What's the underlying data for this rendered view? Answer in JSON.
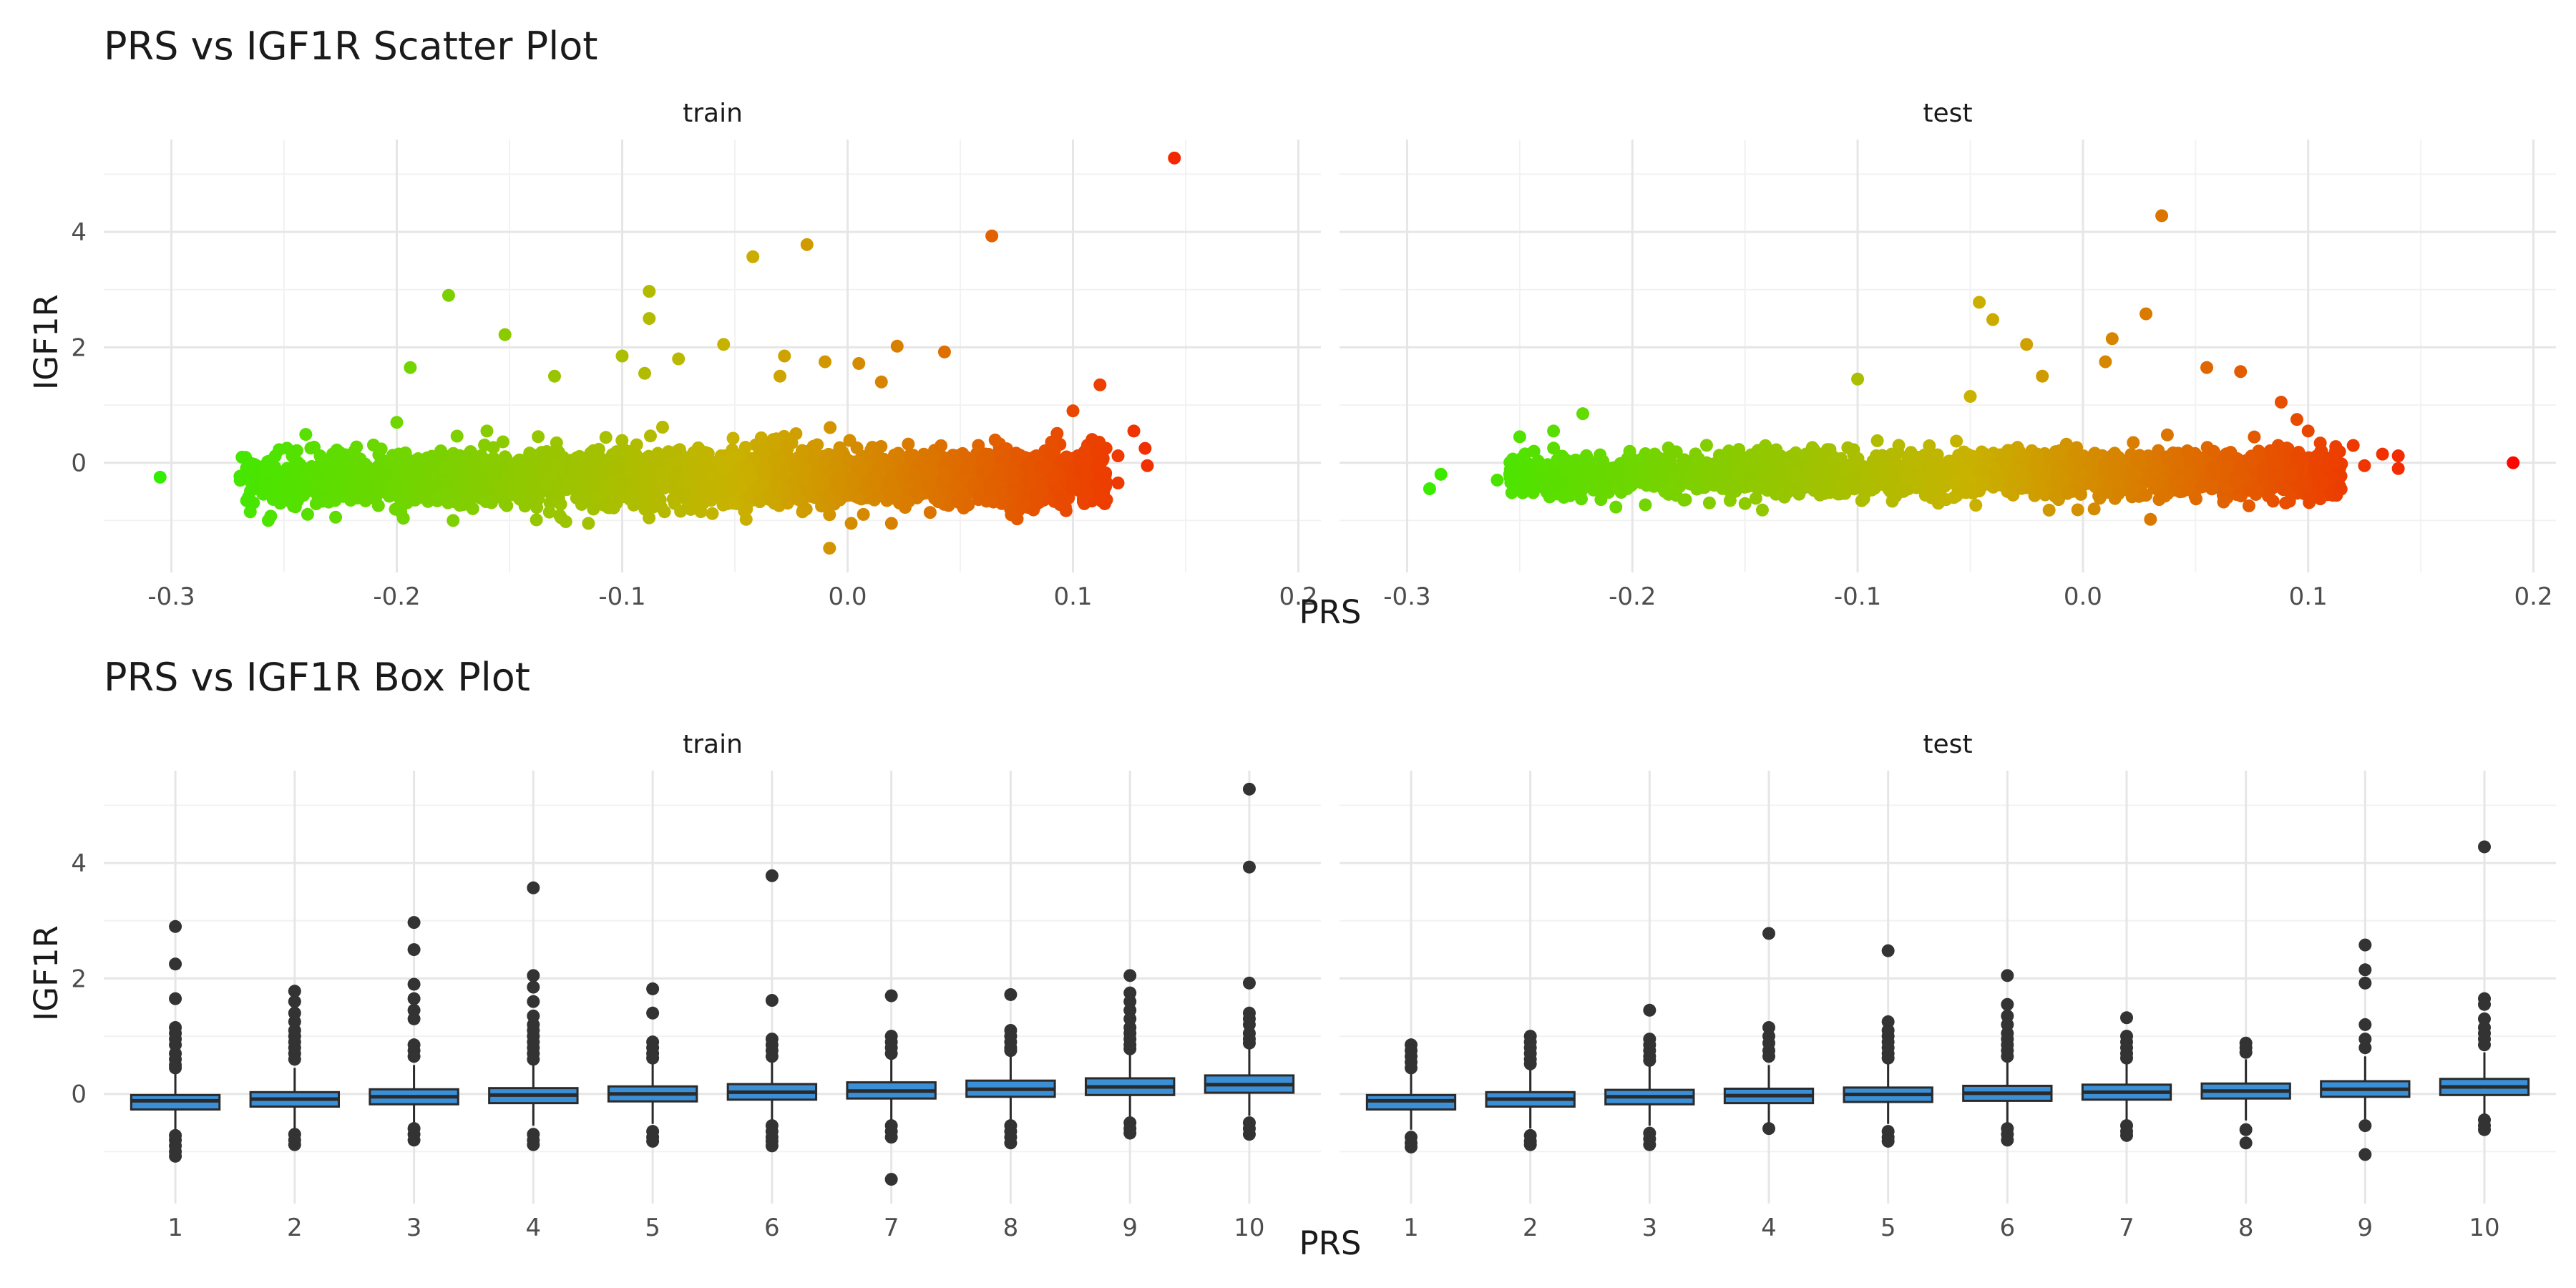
{
  "colors": {
    "grid_major": "#e6e6e6",
    "grid_minor": "#f2f2f2",
    "tick_text": "#4d4d4d",
    "text": "#1a1a1a",
    "box_fill": "#3a8fd6",
    "box_stroke": "#2a2a2a",
    "outlier": "#333333",
    "scatter_low": "#33ee00",
    "scatter_mid": "#c9b200",
    "scatter_high": "#ff0000"
  },
  "chart_data": [
    {
      "type": "scatter",
      "title": "PRS vs IGF1R Scatter Plot",
      "xlabel": "PRS",
      "ylabel": "IGF1R",
      "xlim": [
        -0.33,
        0.21
      ],
      "ylim": [
        -1.9,
        5.6
      ],
      "x_ticks": [
        -0.3,
        -0.2,
        -0.1,
        0.0,
        0.1,
        0.2
      ],
      "x_tick_labels": [
        "-0.3",
        "-0.2",
        "-0.1",
        "0.0",
        "0.1",
        "0.2"
      ],
      "y_ticks": [
        0,
        2,
        4
      ],
      "y_tick_labels": [
        "0",
        "2",
        "4"
      ],
      "grid": true,
      "color_by": "PRS",
      "panels": [
        {
          "label": "train",
          "cloud": {
            "x_min": -0.27,
            "x_max": 0.115,
            "baseline": -0.3,
            "slope": 2.3,
            "spread": 0.6
          },
          "points": [
            [
              -0.305,
              -0.25
            ],
            [
              0.145,
              5.28
            ],
            [
              0.064,
              3.93
            ],
            [
              -0.018,
              3.78
            ],
            [
              -0.042,
              3.57
            ],
            [
              -0.088,
              2.97
            ],
            [
              -0.088,
              2.5
            ],
            [
              -0.177,
              2.9
            ],
            [
              -0.152,
              2.22
            ],
            [
              -0.194,
              1.65
            ],
            [
              -0.13,
              1.5
            ],
            [
              -0.1,
              1.85
            ],
            [
              -0.075,
              1.8
            ],
            [
              -0.055,
              2.05
            ],
            [
              -0.028,
              1.85
            ],
            [
              -0.01,
              1.75
            ],
            [
              0.022,
              2.02
            ],
            [
              0.043,
              1.92
            ],
            [
              0.005,
              1.72
            ],
            [
              0.112,
              1.35
            ],
            [
              0.127,
              0.55
            ],
            [
              0.132,
              0.25
            ],
            [
              0.133,
              -0.05
            ],
            [
              0.12,
              -0.35
            ],
            [
              0.12,
              0.12
            ],
            [
              -0.257,
              -1.0
            ],
            [
              -0.265,
              -0.85
            ],
            [
              -0.175,
              -1.0
            ],
            [
              -0.125,
              -1.02
            ],
            [
              -0.06,
              -0.88
            ],
            [
              -0.045,
              -0.98
            ],
            [
              -0.02,
              -0.85
            ],
            [
              -0.008,
              -0.9
            ],
            [
              -0.008,
              -1.48
            ],
            [
              -0.09,
              1.55
            ],
            [
              -0.03,
              1.5
            ],
            [
              0.015,
              1.4
            ],
            [
              -0.16,
              0.55
            ],
            [
              -0.2,
              0.7
            ],
            [
              0.1,
              0.9
            ]
          ]
        },
        {
          "label": "test",
          "cloud": {
            "x_min": -0.255,
            "x_max": 0.115,
            "baseline": -0.22,
            "slope": 1.6,
            "spread": 0.48
          },
          "points": [
            [
              -0.285,
              -0.2
            ],
            [
              -0.29,
              -0.45
            ],
            [
              0.191,
              0.0
            ],
            [
              0.035,
              4.28
            ],
            [
              -0.046,
              2.78
            ],
            [
              -0.04,
              2.48
            ],
            [
              0.028,
              2.58
            ],
            [
              -0.025,
              2.05
            ],
            [
              0.01,
              1.75
            ],
            [
              0.013,
              2.15
            ],
            [
              0.055,
              1.65
            ],
            [
              0.07,
              1.58
            ],
            [
              -0.1,
              1.45
            ],
            [
              -0.018,
              1.5
            ],
            [
              0.088,
              1.05
            ],
            [
              -0.05,
              1.15
            ],
            [
              -0.222,
              0.85
            ],
            [
              0.12,
              0.3
            ],
            [
              0.133,
              0.15
            ],
            [
              0.14,
              0.12
            ],
            [
              0.14,
              -0.1
            ],
            [
              0.125,
              -0.05
            ],
            [
              0.03,
              -0.98
            ],
            [
              0.005,
              -0.8
            ],
            [
              -0.015,
              -0.82
            ],
            [
              -0.25,
              0.45
            ],
            [
              -0.235,
              0.55
            ],
            [
              -0.26,
              -0.3
            ],
            [
              0.1,
              0.55
            ],
            [
              0.095,
              0.75
            ]
          ]
        }
      ]
    },
    {
      "type": "box",
      "title": "PRS vs IGF1R Box Plot",
      "xlabel": "PRS",
      "ylabel": "IGF1R",
      "categories": [
        "1",
        "2",
        "3",
        "4",
        "5",
        "6",
        "7",
        "8",
        "9",
        "10"
      ],
      "ylim": [
        -1.9,
        5.6
      ],
      "y_ticks": [
        0,
        2,
        4
      ],
      "y_tick_labels": [
        "0",
        "2",
        "4"
      ],
      "grid": true,
      "panels": [
        {
          "label": "train",
          "boxes": [
            {
              "q1": -0.27,
              "median": -0.12,
              "q3": -0.02,
              "whisker_low": -0.65,
              "whisker_high": 0.38,
              "outliers": [
                2.9,
                2.25,
                1.65,
                1.15,
                1.05,
                0.95,
                0.85,
                0.7,
                0.6,
                0.5,
                0.45,
                -0.72,
                -0.8,
                -0.9,
                -1.0,
                -1.08
              ]
            },
            {
              "q1": -0.22,
              "median": -0.09,
              "q3": 0.03,
              "whisker_low": -0.6,
              "whisker_high": 0.45,
              "outliers": [
                1.78,
                1.6,
                1.4,
                1.25,
                1.1,
                1.0,
                0.9,
                0.8,
                0.7,
                0.6,
                -0.7,
                -0.8,
                -0.88
              ]
            },
            {
              "q1": -0.18,
              "median": -0.05,
              "q3": 0.08,
              "whisker_low": -0.55,
              "whisker_high": 0.5,
              "outliers": [
                2.97,
                2.5,
                1.9,
                1.65,
                1.45,
                1.3,
                0.85,
                0.75,
                0.65,
                -0.6,
                -0.7,
                -0.8
              ]
            },
            {
              "q1": -0.16,
              "median": -0.02,
              "q3": 0.1,
              "whisker_low": -0.55,
              "whisker_high": 0.52,
              "outliers": [
                3.57,
                2.05,
                1.85,
                1.6,
                1.35,
                1.2,
                1.1,
                1.0,
                0.9,
                0.8,
                0.7,
                0.6,
                -0.7,
                -0.8,
                -0.88
              ]
            },
            {
              "q1": -0.13,
              "median": 0.0,
              "q3": 0.13,
              "whisker_low": -0.52,
              "whisker_high": 0.52,
              "outliers": [
                1.82,
                1.4,
                0.9,
                0.8,
                0.7,
                0.62,
                -0.65,
                -0.75,
                -0.82
              ]
            },
            {
              "q1": -0.1,
              "median": 0.03,
              "q3": 0.17,
              "whisker_low": -0.5,
              "whisker_high": 0.55,
              "outliers": [
                3.78,
                1.62,
                0.95,
                0.85,
                0.75,
                0.65,
                -0.55,
                -0.65,
                -0.75,
                -0.82,
                -0.9
              ]
            },
            {
              "q1": -0.08,
              "median": 0.05,
              "q3": 0.2,
              "whisker_low": -0.48,
              "whisker_high": 0.6,
              "outliers": [
                1.7,
                1.0,
                0.9,
                0.8,
                0.7,
                -0.55,
                -0.65,
                -0.75,
                -1.48
              ]
            },
            {
              "q1": -0.05,
              "median": 0.08,
              "q3": 0.23,
              "whisker_low": -0.45,
              "whisker_high": 0.65,
              "outliers": [
                1.72,
                1.1,
                1.0,
                0.9,
                0.8,
                0.75,
                -0.55,
                -0.65,
                -0.75,
                -0.85
              ]
            },
            {
              "q1": -0.02,
              "median": 0.12,
              "q3": 0.27,
              "whisker_low": -0.42,
              "whisker_high": 0.7,
              "outliers": [
                2.05,
                1.75,
                1.6,
                1.45,
                1.3,
                1.15,
                1.05,
                0.95,
                0.85,
                0.78,
                -0.5,
                -0.6,
                -0.68
              ]
            },
            {
              "q1": 0.02,
              "median": 0.16,
              "q3": 0.32,
              "whisker_low": -0.38,
              "whisker_high": 0.78,
              "outliers": [
                5.28,
                3.93,
                1.92,
                1.4,
                1.3,
                1.2,
                1.05,
                0.95,
                0.88,
                -0.5,
                -0.6,
                -0.7
              ]
            }
          ]
        },
        {
          "label": "test",
          "boxes": [
            {
              "q1": -0.27,
              "median": -0.12,
              "q3": -0.02,
              "whisker_low": -0.62,
              "whisker_high": 0.38,
              "outliers": [
                0.85,
                0.75,
                0.65,
                0.55,
                0.45,
                -0.75,
                -0.85,
                -0.92
              ]
            },
            {
              "q1": -0.22,
              "median": -0.09,
              "q3": 0.03,
              "whisker_low": -0.6,
              "whisker_high": 0.45,
              "outliers": [
                1.0,
                0.9,
                0.8,
                0.7,
                0.6,
                0.52,
                -0.72,
                -0.82,
                -0.88
              ]
            },
            {
              "q1": -0.18,
              "median": -0.05,
              "q3": 0.07,
              "whisker_low": -0.55,
              "whisker_high": 0.48,
              "outliers": [
                1.45,
                0.95,
                0.85,
                0.75,
                0.65,
                0.58,
                -0.68,
                -0.78,
                -0.88
              ]
            },
            {
              "q1": -0.16,
              "median": -0.03,
              "q3": 0.09,
              "whisker_low": -0.55,
              "whisker_high": 0.5,
              "outliers": [
                2.78,
                1.15,
                1.0,
                0.88,
                0.75,
                0.65,
                -0.6
              ]
            },
            {
              "q1": -0.14,
              "median": -0.01,
              "q3": 0.11,
              "whisker_low": -0.52,
              "whisker_high": 0.52,
              "outliers": [
                2.48,
                1.25,
                1.1,
                1.0,
                0.9,
                0.8,
                0.7,
                0.62,
                -0.65,
                -0.75,
                -0.82
              ]
            },
            {
              "q1": -0.12,
              "median": 0.01,
              "q3": 0.14,
              "whisker_low": -0.5,
              "whisker_high": 0.55,
              "outliers": [
                2.05,
                1.55,
                1.35,
                1.2,
                1.05,
                0.95,
                0.85,
                0.75,
                0.65,
                -0.6,
                -0.7,
                -0.8
              ]
            },
            {
              "q1": -0.1,
              "median": 0.03,
              "q3": 0.16,
              "whisker_low": -0.48,
              "whisker_high": 0.57,
              "outliers": [
                1.32,
                1.0,
                0.9,
                0.8,
                0.7,
                0.62,
                -0.55,
                -0.65,
                -0.72
              ]
            },
            {
              "q1": -0.08,
              "median": 0.05,
              "q3": 0.18,
              "whisker_low": -0.46,
              "whisker_high": 0.6,
              "outliers": [
                0.88,
                0.8,
                0.72,
                -0.62,
                -0.85
              ]
            },
            {
              "q1": -0.05,
              "median": 0.08,
              "q3": 0.22,
              "whisker_low": -0.44,
              "whisker_high": 0.65,
              "outliers": [
                2.58,
                2.15,
                1.92,
                1.2,
                0.95,
                0.8,
                -0.55,
                -1.05
              ]
            },
            {
              "q1": -0.02,
              "median": 0.12,
              "q3": 0.26,
              "whisker_low": -0.4,
              "whisker_high": 0.72,
              "outliers": [
                4.28,
                1.65,
                1.55,
                1.3,
                1.15,
                1.05,
                0.95,
                0.85,
                -0.45,
                -0.55,
                -0.62
              ]
            }
          ]
        }
      ]
    }
  ]
}
